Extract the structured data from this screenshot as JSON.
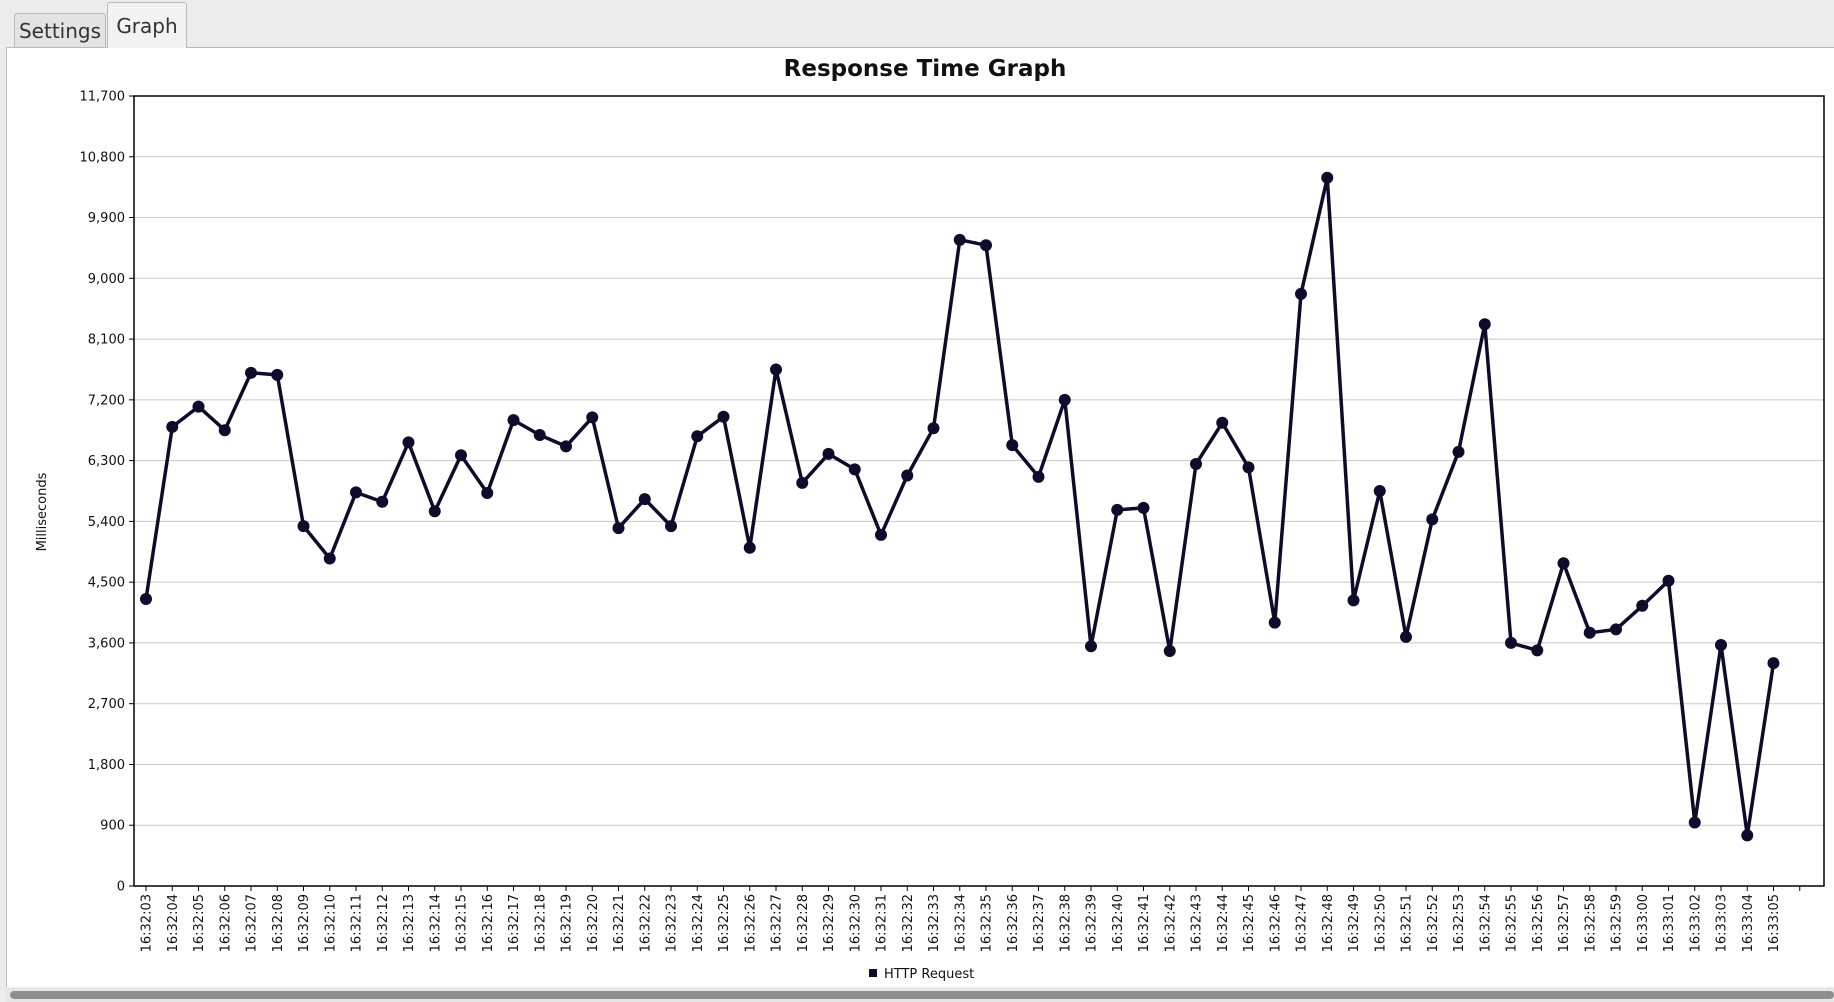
{
  "tabs": [
    {
      "label": "Settings"
    },
    {
      "label": "Graph"
    }
  ],
  "colors": {
    "series": "#0d0d2b",
    "grid": "#c8c8c8",
    "background": "#ffffff"
  },
  "chart_data": {
    "type": "line",
    "title": "Response Time Graph",
    "xlabel": "",
    "ylabel": "Milliseconds",
    "ylim": [
      0,
      11700
    ],
    "yticks": [
      "0",
      "900",
      "1,800",
      "2,700",
      "3,600",
      "4,500",
      "5,400",
      "6,300",
      "7,200",
      "8,100",
      "9,000",
      "9,900",
      "10,800",
      "11,700"
    ],
    "grid": true,
    "legend_position": "bottom",
    "categories": [
      "16:32:03",
      "16:32:04",
      "16:32:05",
      "16:32:06",
      "16:32:07",
      "16:32:08",
      "16:32:09",
      "16:32:10",
      "16:32:11",
      "16:32:12",
      "16:32:13",
      "16:32:14",
      "16:32:15",
      "16:32:16",
      "16:32:17",
      "16:32:18",
      "16:32:19",
      "16:32:20",
      "16:32:21",
      "16:32:22",
      "16:32:23",
      "16:32:24",
      "16:32:25",
      "16:32:26",
      "16:32:27",
      "16:32:28",
      "16:32:29",
      "16:32:30",
      "16:32:31",
      "16:32:32",
      "16:32:33",
      "16:32:34",
      "16:32:35",
      "16:32:36",
      "16:32:37",
      "16:32:38",
      "16:32:39",
      "16:32:40",
      "16:32:41",
      "16:32:42",
      "16:32:43",
      "16:32:44",
      "16:32:45",
      "16:32:46",
      "16:32:47",
      "16:32:48",
      "16:32:49",
      "16:32:50",
      "16:32:51",
      "16:32:52",
      "16:32:53",
      "16:32:54",
      "16:32:55",
      "16:32:56",
      "16:32:57",
      "16:32:58",
      "16:32:59",
      "16:33:00",
      "16:33:01",
      "16:33:02",
      "16:33:03",
      "16:33:04",
      "16:33:05"
    ],
    "series": [
      {
        "name": "HTTP Request",
        "values": [
          4250,
          6800,
          7100,
          6750,
          7600,
          7570,
          5330,
          4850,
          5830,
          5690,
          6570,
          5550,
          6380,
          5820,
          6900,
          6680,
          6510,
          6940,
          5300,
          5730,
          5330,
          6660,
          6950,
          5010,
          7650,
          5970,
          6400,
          6170,
          5200,
          6080,
          6780,
          9570,
          9490,
          6530,
          6060,
          7200,
          3550,
          5570,
          5600,
          3480,
          6250,
          6860,
          6200,
          3900,
          8770,
          10490,
          4230,
          5850,
          3690,
          5430,
          6430,
          8320,
          3600,
          3490,
          4780,
          3750,
          3800,
          4150,
          4520,
          940,
          3570,
          750,
          3300
        ]
      }
    ]
  }
}
